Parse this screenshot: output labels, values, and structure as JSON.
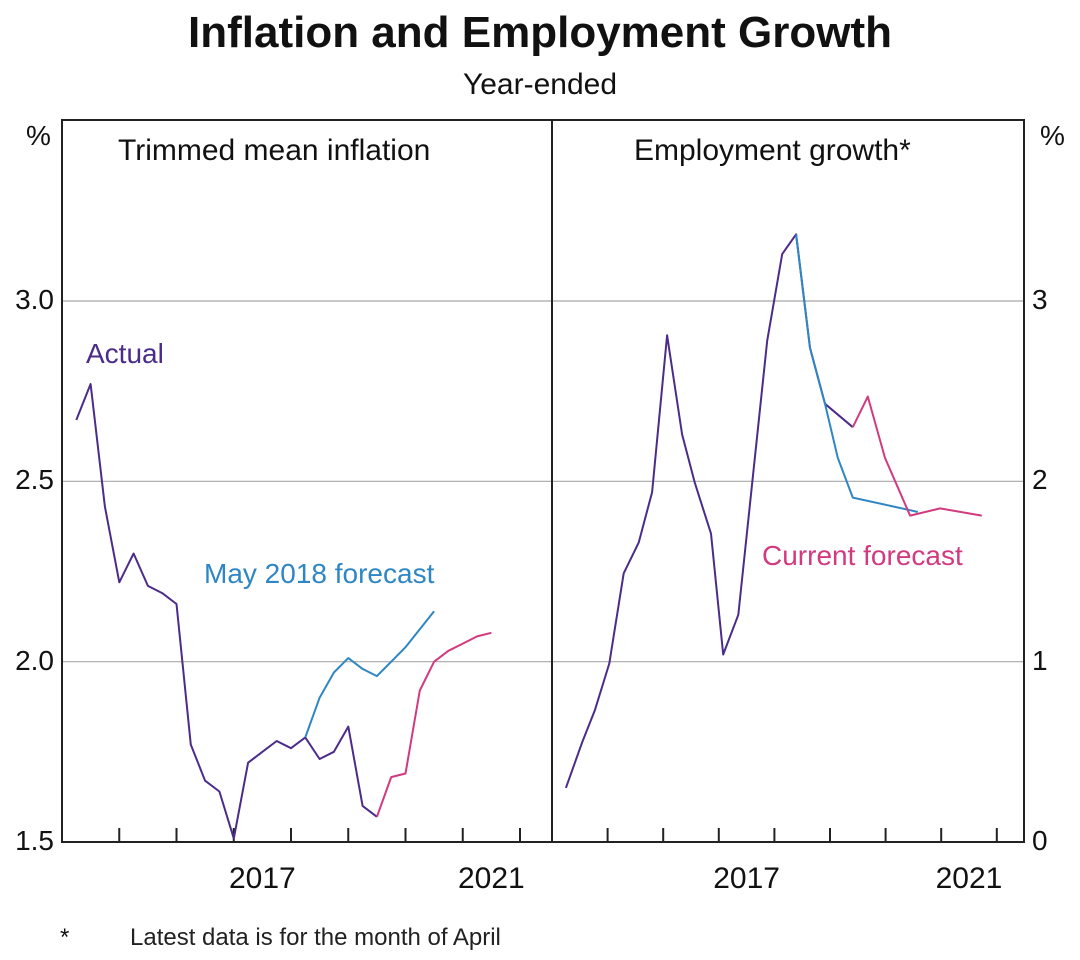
{
  "chart_data": [
    {
      "type": "line",
      "title": "Inflation and Employment Growth",
      "subtitle": "Year-ended",
      "panel_title": "Trimmed mean inflation",
      "ylabel": "%",
      "ylim": [
        1.5,
        3.5
      ],
      "yticks": [
        "1.5",
        "2.0",
        "2.5",
        "3.0"
      ],
      "ytick_values": [
        1.5,
        2.0,
        2.5,
        3.0
      ],
      "xlim": [
        2014.0,
        2022.5
      ],
      "xtick_labels": [
        {
          "label": "2017",
          "x": 2017.5
        },
        {
          "label": "2021",
          "x": 2021.5
        }
      ],
      "xtick_marks": [
        2015,
        2016,
        2017,
        2018,
        2019,
        2020,
        2021,
        2022
      ],
      "grid": true,
      "series": [
        {
          "name": "Actual",
          "color": "#4b2c8a",
          "x": [
            2014.25,
            2014.5,
            2014.75,
            2015.0,
            2015.25,
            2015.5,
            2015.75,
            2016.0,
            2016.25,
            2016.5,
            2016.75,
            2017.0,
            2017.25,
            2017.5,
            2017.75,
            2018.0,
            2018.25,
            2018.5,
            2018.75,
            2019.0,
            2019.25,
            2019.5
          ],
          "y": [
            2.67,
            2.77,
            2.43,
            2.22,
            2.3,
            2.21,
            2.19,
            2.16,
            1.77,
            1.67,
            1.64,
            1.51,
            1.72,
            1.75,
            1.78,
            1.76,
            1.79,
            1.73,
            1.75,
            1.82,
            1.6,
            1.57
          ]
        },
        {
          "name": "May 2018 forecast",
          "color": "#2f86c4",
          "x": [
            2018.25,
            2018.5,
            2018.75,
            2019.0,
            2019.25,
            2019.5,
            2019.75,
            2020.0,
            2020.25,
            2020.5
          ],
          "y": [
            1.79,
            1.9,
            1.97,
            2.01,
            1.98,
            1.96,
            2.0,
            2.04,
            2.09,
            2.14
          ]
        },
        {
          "name": "Current forecast",
          "color": "#d23a80",
          "x": [
            2019.5,
            2019.75,
            2020.0,
            2020.25,
            2020.5,
            2020.75,
            2021.0,
            2021.25,
            2021.5
          ],
          "y": [
            1.57,
            1.68,
            1.69,
            1.92,
            2.0,
            2.03,
            2.05,
            2.07,
            2.08
          ]
        }
      ],
      "annotations": [
        "Actual",
        "May 2018 forecast"
      ]
    },
    {
      "type": "line",
      "panel_title": "Employment growth*",
      "ylabel": "%",
      "ylim": [
        0,
        4
      ],
      "yticks": [
        "0",
        "1",
        "2",
        "3"
      ],
      "ytick_values": [
        0,
        1,
        2,
        3
      ],
      "xlim": [
        2014.0,
        2022.5
      ],
      "xtick_labels": [
        {
          "label": "2017",
          "x": 2017.5
        },
        {
          "label": "2021",
          "x": 2021.5
        }
      ],
      "xtick_marks": [
        2015,
        2016,
        2017,
        2018,
        2019,
        2020,
        2021,
        2022
      ],
      "grid": true,
      "series": [
        {
          "name": "Actual",
          "color": "#4b2c8a",
          "x": [
            2014.25,
            2014.54,
            2014.77,
            2015.03,
            2015.29,
            2015.56,
            2015.8,
            2016.07,
            2016.34,
            2016.57,
            2016.86,
            2017.08,
            2017.35,
            2017.87,
            2018.14,
            2018.39,
            2018.64,
            2018.91,
            2019.41
          ],
          "y": [
            0.3,
            0.55,
            0.73,
            0.99,
            1.49,
            1.66,
            1.94,
            2.81,
            2.26,
            1.99,
            1.71,
            1.04,
            1.26,
            2.78,
            3.26,
            3.37,
            2.74,
            2.43,
            2.3
          ]
        },
        {
          "name": "May 2018 forecast",
          "color": "#2f86c4",
          "x": [
            2018.39,
            2018.64,
            2018.91,
            2019.14,
            2019.41,
            2020.44,
            2020.58
          ],
          "y": [
            3.37,
            2.74,
            2.43,
            2.13,
            1.91,
            1.84,
            1.83
          ]
        },
        {
          "name": "Current forecast",
          "color": "#d23a80",
          "x": [
            2019.41,
            2019.68,
            2019.99,
            2020.44,
            2020.98,
            2021.73
          ],
          "y": [
            2.3,
            2.47,
            2.13,
            1.81,
            1.85,
            1.81
          ]
        }
      ],
      "annotations": [
        "Current forecast"
      ]
    }
  ],
  "labels": {
    "title": "Inflation and Employment Growth",
    "subtitle": "Year-ended",
    "left_unit": "%",
    "right_unit": "%",
    "left_panel_title": "Trimmed mean inflation",
    "right_panel_title": "Employment growth*",
    "actual": "Actual",
    "may_forecast": "May 2018 forecast",
    "current_forecast": "Current forecast",
    "footnote_marker": "*",
    "footnote": "Latest data is for the month of April"
  },
  "colors": {
    "actual": "#4b2c8a",
    "may_forecast": "#2f86c4",
    "current_forecast": "#d23a80",
    "grid": "#a8a8a8",
    "axis": "#222222"
  }
}
